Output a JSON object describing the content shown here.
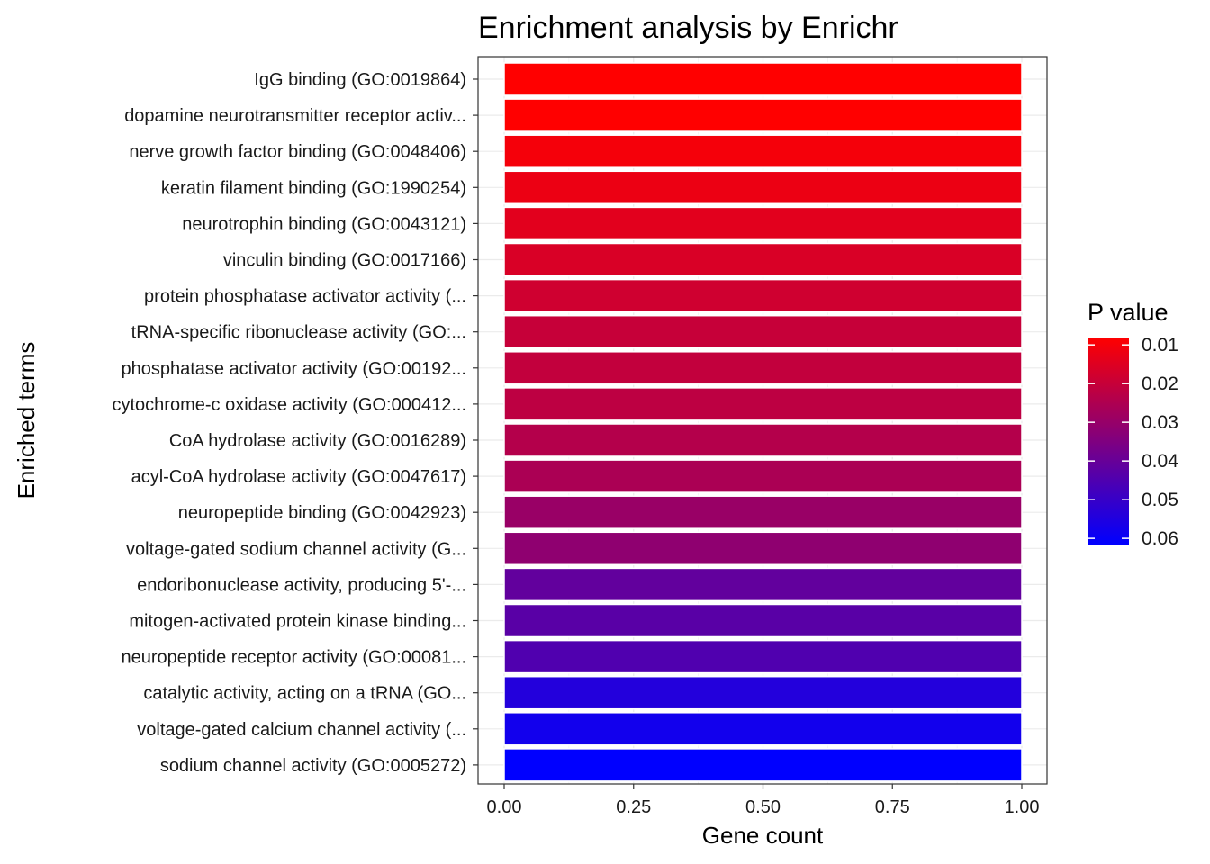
{
  "chart_data": {
    "type": "bar",
    "orientation": "horizontal",
    "title": "Enrichment analysis by Enrichr",
    "xlabel": "Gene count",
    "ylabel": "Enriched terms",
    "xlim": [
      0,
      1.05
    ],
    "x_ticks": [
      0,
      0.25,
      0.5,
      0.75,
      1
    ],
    "x_tick_labels": [
      "0.00",
      "0.25",
      "0.50",
      "0.75",
      "1.00"
    ],
    "grid": true,
    "categories": [
      "IgG binding (GO:0019864)",
      "dopamine neurotransmitter receptor activ...",
      "nerve growth factor binding (GO:0048406)",
      "keratin filament binding (GO:1990254)",
      "neurotrophin binding (GO:0043121)",
      "vinculin binding (GO:0017166)",
      "protein phosphatase activator activity (...",
      "tRNA-specific ribonuclease activity (GO:...",
      "phosphatase activator activity (GO:00192...",
      "cytochrome-c oxidase activity (GO:000412...",
      "CoA hydrolase activity (GO:0016289)",
      "acyl-CoA hydrolase activity (GO:0047617)",
      "neuropeptide binding (GO:0042923)",
      "voltage-gated sodium channel activity (G...",
      "endoribonuclease activity, producing 5'-...",
      "mitogen-activated protein kinase binding...",
      "neuropeptide receptor activity (GO:00081...",
      "catalytic activity, acting on a tRNA (GO...",
      "voltage-gated calcium channel activity (...",
      "sodium channel activity (GO:0005272)"
    ],
    "values": [
      1,
      1,
      1,
      1,
      1,
      1,
      1,
      1,
      1,
      1,
      1,
      1,
      1,
      1,
      1,
      1,
      1,
      1,
      1,
      1
    ],
    "p_values": [
      0.0081,
      0.0081,
      0.0101,
      0.0121,
      0.0141,
      0.0161,
      0.0181,
      0.02,
      0.021,
      0.0219,
      0.0238,
      0.0257,
      0.0296,
      0.0315,
      0.041,
      0.0429,
      0.0448,
      0.0542,
      0.0579,
      0.0616
    ],
    "legend": {
      "title": "P value",
      "position": "right",
      "min": 0.0081,
      "max": 0.0616,
      "ticks": [
        0.01,
        0.02,
        0.03,
        0.04,
        0.05,
        0.06
      ],
      "tick_labels": [
        "0.01",
        "0.02",
        "0.03",
        "0.04",
        "0.05",
        "0.06"
      ],
      "color_low": "#ff0000",
      "color_high": "#0000ff"
    }
  }
}
